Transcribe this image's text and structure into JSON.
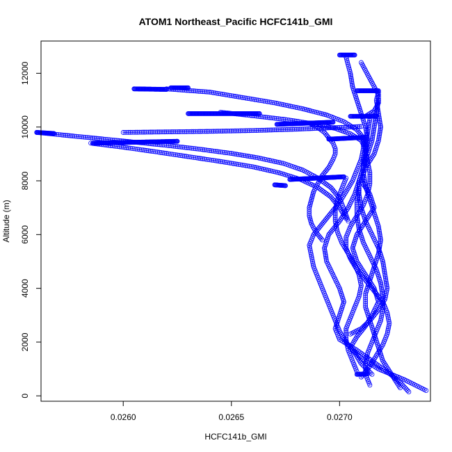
{
  "chart_data": {
    "type": "scatter",
    "title": "ATOM1 Northeast_Pacific HCFC141b_GMI",
    "xlabel": "HCFC141b_GMI",
    "ylabel": "Altitude (m)",
    "xlim": [
      0.02562,
      0.02742
    ],
    "ylim": [
      -200,
      13200
    ],
    "xticks": [
      0.026,
      0.0265,
      0.027
    ],
    "xtick_labels": [
      "0.0260",
      "0.0265",
      "0.0270"
    ],
    "yticks": [
      0,
      2000,
      4000,
      6000,
      8000,
      10000,
      12000
    ],
    "ytick_labels": [
      "0",
      "2000",
      "4000",
      "6000",
      "8000",
      "10000",
      "12000"
    ],
    "series_color": "#0000ff",
    "marker": "open-circle",
    "connected": true,
    "profiles": [
      [
        [
          0.0274,
          200
        ],
        [
          0.0273,
          600
        ],
        [
          0.02718,
          1000
        ],
        [
          0.0271,
          1400
        ],
        [
          0.02705,
          1800
        ],
        [
          0.02708,
          2200
        ],
        [
          0.02712,
          2600
        ],
        [
          0.02715,
          3000
        ],
        [
          0.02718,
          3500
        ],
        [
          0.02716,
          4000
        ],
        [
          0.02712,
          4500
        ],
        [
          0.02708,
          5000
        ],
        [
          0.02706,
          5500
        ],
        [
          0.02708,
          6000
        ],
        [
          0.02712,
          6500
        ],
        [
          0.02716,
          7000
        ],
        [
          0.02714,
          7500
        ],
        [
          0.0271,
          8000
        ],
        [
          0.02712,
          8500
        ],
        [
          0.02716,
          9000
        ],
        [
          0.02718,
          9500
        ],
        [
          0.02719,
          10000
        ],
        [
          0.02718,
          10500
        ],
        [
          0.02717,
          11000
        ],
        [
          0.02718,
          11300
        ]
      ],
      [
        [
          0.02732,
          150
        ],
        [
          0.02728,
          500
        ],
        [
          0.02722,
          900
        ],
        [
          0.02715,
          1300
        ],
        [
          0.02708,
          1700
        ],
        [
          0.027,
          2100
        ],
        [
          0.02698,
          2500
        ],
        [
          0.027,
          3000
        ],
        [
          0.02702,
          3500
        ],
        [
          0.027,
          4000
        ],
        [
          0.02697,
          4500
        ],
        [
          0.02694,
          5000
        ],
        [
          0.02693,
          5500
        ],
        [
          0.02695,
          6000
        ],
        [
          0.027,
          6500
        ],
        [
          0.02704,
          7000
        ],
        [
          0.02707,
          7500
        ],
        [
          0.02709,
          8000
        ],
        [
          0.02711,
          8500
        ],
        [
          0.02712,
          9000
        ],
        [
          0.02713,
          9500
        ],
        [
          0.02712,
          10000
        ],
        [
          0.0271,
          10500
        ],
        [
          0.02708,
          11000
        ],
        [
          0.02706,
          11500
        ],
        [
          0.02705,
          12000
        ],
        [
          0.02703,
          12600
        ]
      ],
      [
        [
          0.02715,
          800
        ],
        [
          0.0271,
          1200
        ],
        [
          0.02707,
          1600
        ],
        [
          0.02703,
          2000
        ],
        [
          0.027,
          2400
        ],
        [
          0.02698,
          2800
        ],
        [
          0.02696,
          3200
        ],
        [
          0.02694,
          3600
        ],
        [
          0.02692,
          4000
        ],
        [
          0.0269,
          4400
        ],
        [
          0.02688,
          4800
        ],
        [
          0.02687,
          5200
        ],
        [
          0.02686,
          5600
        ],
        [
          0.02688,
          6000
        ],
        [
          0.02692,
          6400
        ],
        [
          0.02696,
          6800
        ],
        [
          0.027,
          7200
        ],
        [
          0.02703,
          7600
        ],
        [
          0.02706,
          8000
        ],
        [
          0.02708,
          8400
        ],
        [
          0.0271,
          8800
        ],
        [
          0.02711,
          9200
        ],
        [
          0.02711,
          9600
        ]
      ],
      [
        [
          0.02728,
          300
        ],
        [
          0.02724,
          800
        ],
        [
          0.0272,
          1300
        ],
        [
          0.02718,
          1800
        ],
        [
          0.02716,
          2300
        ],
        [
          0.02714,
          2800
        ],
        [
          0.02712,
          3300
        ],
        [
          0.02712,
          3800
        ],
        [
          0.02714,
          4300
        ],
        [
          0.02716,
          4800
        ],
        [
          0.02718,
          5300
        ],
        [
          0.02719,
          5800
        ],
        [
          0.02718,
          6300
        ],
        [
          0.02716,
          6800
        ],
        [
          0.02714,
          7300
        ],
        [
          0.02712,
          7800
        ],
        [
          0.02711,
          8300
        ],
        [
          0.02711,
          8800
        ],
        [
          0.02712,
          9300
        ],
        [
          0.02713,
          9800
        ],
        [
          0.02714,
          10300
        ]
      ],
      [
        [
          0.02708,
          900
        ],
        [
          0.02706,
          1300
        ],
        [
          0.02704,
          1700
        ],
        [
          0.02703,
          2100
        ],
        [
          0.02703,
          2500
        ],
        [
          0.02705,
          2900
        ],
        [
          0.02707,
          3300
        ],
        [
          0.02709,
          3700
        ],
        [
          0.0271,
          4100
        ],
        [
          0.02709,
          4500
        ],
        [
          0.02707,
          4900
        ],
        [
          0.02704,
          5300
        ],
        [
          0.02701,
          5700
        ],
        [
          0.02699,
          6100
        ],
        [
          0.02698,
          6500
        ],
        [
          0.02698,
          6900
        ],
        [
          0.02699,
          7300
        ],
        [
          0.02701,
          7700
        ],
        [
          0.02703,
          8100
        ]
      ],
      [
        [
          0.02705,
          2300
        ],
        [
          0.0271,
          2500
        ],
        [
          0.02714,
          2800
        ],
        [
          0.02718,
          3200
        ],
        [
          0.02721,
          3600
        ],
        [
          0.02722,
          4000
        ],
        [
          0.02721,
          4500
        ],
        [
          0.0272,
          5000
        ],
        [
          0.02718,
          5500
        ],
        [
          0.02715,
          6000
        ],
        [
          0.02712,
          6500
        ],
        [
          0.0271,
          7000
        ],
        [
          0.02709,
          7500
        ],
        [
          0.02709,
          8000
        ],
        [
          0.02711,
          8500
        ],
        [
          0.02713,
          9000
        ],
        [
          0.02715,
          9500
        ],
        [
          0.02716,
          10000
        ],
        [
          0.02717,
          10500
        ],
        [
          0.02718,
          11000
        ]
      ],
      [
        [
          0.026,
          9800
        ],
        [
          0.0262,
          9820
        ],
        [
          0.0264,
          9840
        ],
        [
          0.0266,
          9870
        ],
        [
          0.0268,
          9920
        ],
        [
          0.02695,
          9970
        ],
        [
          0.02705,
          10000
        ],
        [
          0.0271,
          10020
        ]
      ],
      [
        [
          0.02686,
          10150
        ],
        [
          0.0269,
          9980
        ],
        [
          0.02693,
          9800
        ],
        [
          0.02695,
          9600
        ],
        [
          0.02697,
          9400
        ],
        [
          0.02698,
          9200
        ],
        [
          0.02698,
          9000
        ],
        [
          0.02697,
          8800
        ],
        [
          0.02695,
          8500
        ],
        [
          0.02692,
          8200
        ],
        [
          0.0269,
          7900
        ],
        [
          0.02688,
          7600
        ],
        [
          0.02687,
          7300
        ],
        [
          0.02686,
          7000
        ],
        [
          0.02686,
          6700
        ],
        [
          0.02687,
          6400
        ],
        [
          0.02689,
          6100
        ],
        [
          0.02692,
          5800
        ]
      ],
      [
        [
          0.0256,
          9800
        ],
        [
          0.02575,
          9680
        ],
        [
          0.0259,
          9560
        ],
        [
          0.02605,
          9440
        ],
        [
          0.0262,
          9320
        ],
        [
          0.02635,
          9180
        ],
        [
          0.0265,
          9020
        ],
        [
          0.02662,
          8860
        ],
        [
          0.02674,
          8650
        ],
        [
          0.02683,
          8400
        ],
        [
          0.0269,
          8100
        ],
        [
          0.02696,
          7750
        ],
        [
          0.027,
          7350
        ],
        [
          0.02702,
          6950
        ],
        [
          0.02704,
          6500
        ]
      ],
      [
        [
          0.02585,
          9400
        ],
        [
          0.026,
          9250
        ],
        [
          0.02615,
          9080
        ],
        [
          0.0263,
          8900
        ],
        [
          0.02645,
          8720
        ],
        [
          0.0266,
          8520
        ],
        [
          0.02672,
          8300
        ],
        [
          0.02682,
          8050
        ],
        [
          0.0269,
          7750
        ],
        [
          0.02696,
          7400
        ],
        [
          0.027,
          7000
        ],
        [
          0.02703,
          6600
        ]
      ],
      [
        [
          0.0262,
          11420
        ],
        [
          0.0264,
          11300
        ],
        [
          0.02655,
          11100
        ],
        [
          0.0267,
          10900
        ],
        [
          0.02683,
          10680
        ],
        [
          0.02694,
          10450
        ],
        [
          0.02702,
          10200
        ],
        [
          0.02708,
          9900
        ],
        [
          0.02711,
          9600
        ],
        [
          0.02712,
          9300
        ]
      ],
      [
        [
          0.02645,
          10550
        ],
        [
          0.0266,
          10420
        ],
        [
          0.02675,
          10280
        ],
        [
          0.02688,
          10120
        ],
        [
          0.02698,
          9950
        ],
        [
          0.02705,
          9750
        ],
        [
          0.0271,
          9500
        ],
        [
          0.02712,
          9200
        ]
      ],
      [
        [
          0.0271,
          12400
        ],
        [
          0.02712,
          12100
        ],
        [
          0.02714,
          11800
        ],
        [
          0.02716,
          11500
        ],
        [
          0.02718,
          11200
        ],
        [
          0.02718,
          10900
        ],
        [
          0.02716,
          10600
        ],
        [
          0.02712,
          10400
        ],
        [
          0.02708,
          10400
        ]
      ],
      [
        [
          0.0271,
          700
        ],
        [
          0.02714,
          1100
        ],
        [
          0.02717,
          1500
        ],
        [
          0.0272,
          1900
        ],
        [
          0.02722,
          2300
        ],
        [
          0.02723,
          2700
        ],
        [
          0.02722,
          3100
        ],
        [
          0.0272,
          3500
        ],
        [
          0.02716,
          3900
        ],
        [
          0.02712,
          4300
        ],
        [
          0.02708,
          4700
        ],
        [
          0.02705,
          5100
        ],
        [
          0.02703,
          5500
        ],
        [
          0.02703,
          5900
        ],
        [
          0.02705,
          6300
        ],
        [
          0.02708,
          6700
        ],
        [
          0.02711,
          7100
        ],
        [
          0.02713,
          7500
        ],
        [
          0.02714,
          7900
        ],
        [
          0.02714,
          8300
        ],
        [
          0.02713,
          8700
        ],
        [
          0.02712,
          9100
        ]
      ],
      [
        [
          0.02714,
          400
        ],
        [
          0.02712,
          800
        ],
        [
          0.02712,
          1200
        ],
        [
          0.02713,
          1600
        ],
        [
          0.02715,
          2000
        ],
        [
          0.02717,
          2400
        ],
        [
          0.02719,
          2800
        ],
        [
          0.0272,
          3200
        ],
        [
          0.0272,
          3700
        ],
        [
          0.02719,
          4200
        ],
        [
          0.02717,
          4700
        ],
        [
          0.02714,
          5200
        ],
        [
          0.02711,
          5700
        ],
        [
          0.02709,
          6200
        ],
        [
          0.02708,
          6700
        ],
        [
          0.02708,
          7200
        ],
        [
          0.02709,
          7700
        ]
      ]
    ],
    "legs": [
      [
        [
          0.027,
          12680
        ],
        [
          0.02707,
          12680
        ]
      ],
      [
        [
          0.02708,
          11350
        ],
        [
          0.02718,
          11350
        ]
      ],
      [
        [
          0.02605,
          11420
        ],
        [
          0.0262,
          11400
        ]
      ],
      [
        [
          0.02622,
          11460
        ],
        [
          0.0263,
          11460
        ]
      ],
      [
        [
          0.0263,
          10500
        ],
        [
          0.02663,
          10500
        ]
      ],
      [
        [
          0.02671,
          10100
        ],
        [
          0.02697,
          10180
        ]
      ],
      [
        [
          0.0256,
          9800
        ],
        [
          0.02568,
          9760
        ]
      ],
      [
        [
          0.02586,
          9400
        ],
        [
          0.02625,
          9470
        ]
      ],
      [
        [
          0.02695,
          9550
        ],
        [
          0.02712,
          9620
        ]
      ],
      [
        [
          0.0267,
          7850
        ],
        [
          0.02675,
          7820
        ]
      ],
      [
        [
          0.02677,
          8050
        ],
        [
          0.02702,
          8150
        ]
      ],
      [
        [
          0.02705,
          10400
        ],
        [
          0.02717,
          10400
        ]
      ],
      [
        [
          0.02708,
          800
        ],
        [
          0.02713,
          820
        ]
      ]
    ]
  }
}
